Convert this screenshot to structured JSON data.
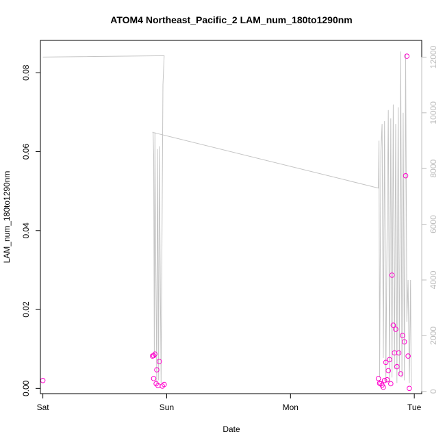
{
  "chart_data": {
    "type": "scatter",
    "title": "ATOM4 Northeast_Pacific_2 LAM_num_180to1290nm",
    "xlabel": "Date",
    "ylabel": "LAM_num_180to1290nm",
    "x_ticks": [
      {
        "label": "Sat",
        "value": 0
      },
      {
        "label": "Sun",
        "value": 1
      },
      {
        "label": "Mon",
        "value": 2
      },
      {
        "label": "Tue",
        "value": 3
      }
    ],
    "xlim": [
      -0.02,
      3.06
    ],
    "ylim": [
      -0.00133,
      0.0882
    ],
    "y_ticks": [
      "0.00",
      "0.02",
      "0.04",
      "0.06",
      "0.08"
    ],
    "y_tick_values": [
      0,
      0.02,
      0.04,
      0.06,
      0.08
    ],
    "y2lim": [
      -80,
      12600
    ],
    "y2_ticks": [
      "0",
      "2000",
      "4000",
      "6000",
      "8000",
      "10000",
      "12000"
    ],
    "y2_tick_values": [
      0,
      2000,
      4000,
      6000,
      8000,
      10000,
      12000
    ],
    "colors": {
      "points": "#ff00cc",
      "line": "#c4c4c4",
      "right_axis": "#bdbdbd"
    },
    "series": [
      {
        "type": "points",
        "x": [
          0.0,
          0.885,
          0.895,
          0.905,
          0.895,
          0.915,
          0.92,
          0.93,
          0.94,
          0.965,
          0.98,
          2.71,
          2.72,
          2.73,
          2.74,
          2.75,
          2.76,
          2.77,
          2.78,
          2.79,
          2.8,
          2.81,
          2.82,
          2.83,
          2.84,
          2.85,
          2.86,
          2.875,
          2.89,
          2.905,
          2.92,
          2.93,
          2.94,
          2.95,
          2.96
        ],
        "y": [
          0.002,
          0.0082,
          0.0083,
          0.0087,
          0.0025,
          0.0012,
          0.0047,
          0.0007,
          0.0068,
          0.0006,
          0.001,
          0.0025,
          0.0013,
          0.0012,
          0.0008,
          0.0003,
          0.002,
          0.0066,
          0.0022,
          0.0045,
          0.0073,
          0.0012,
          0.0287,
          0.016,
          0.009,
          0.015,
          0.0055,
          0.009,
          0.0037,
          0.0134,
          0.0118,
          0.0539,
          0.0842,
          0.0082,
          0.0
        ]
      },
      {
        "type": "line",
        "axis": "right",
        "x": [
          0.0,
          0.98,
          0.97,
          0.955,
          0.94,
          0.935,
          0.925,
          0.92,
          0.91,
          0.905,
          0.9,
          0.895,
          0.89,
          0.885,
          2.71,
          2.715,
          2.72,
          2.73,
          2.74,
          2.75,
          2.76,
          2.77,
          2.78,
          2.79,
          2.8,
          2.81,
          2.82,
          2.83,
          2.84,
          2.85,
          2.86,
          2.87,
          2.88,
          2.89,
          2.9,
          2.91,
          2.92,
          2.93,
          2.94,
          2.95,
          2.96,
          2.97,
          2.975
        ],
        "y": [
          12000,
          12050,
          11000,
          300,
          8800,
          400,
          8700,
          300,
          5500,
          9300,
          1200,
          8500,
          9300,
          9300,
          7300,
          9000,
          500,
          8600,
          9600,
          1200,
          9700,
          300,
          5600,
          10100,
          300,
          9800,
          500,
          10300,
          800,
          9600,
          300,
          10200,
          600,
          12200,
          500,
          10000,
          400,
          12100,
          2500,
          4000,
          300,
          4000,
          200
        ]
      }
    ]
  }
}
